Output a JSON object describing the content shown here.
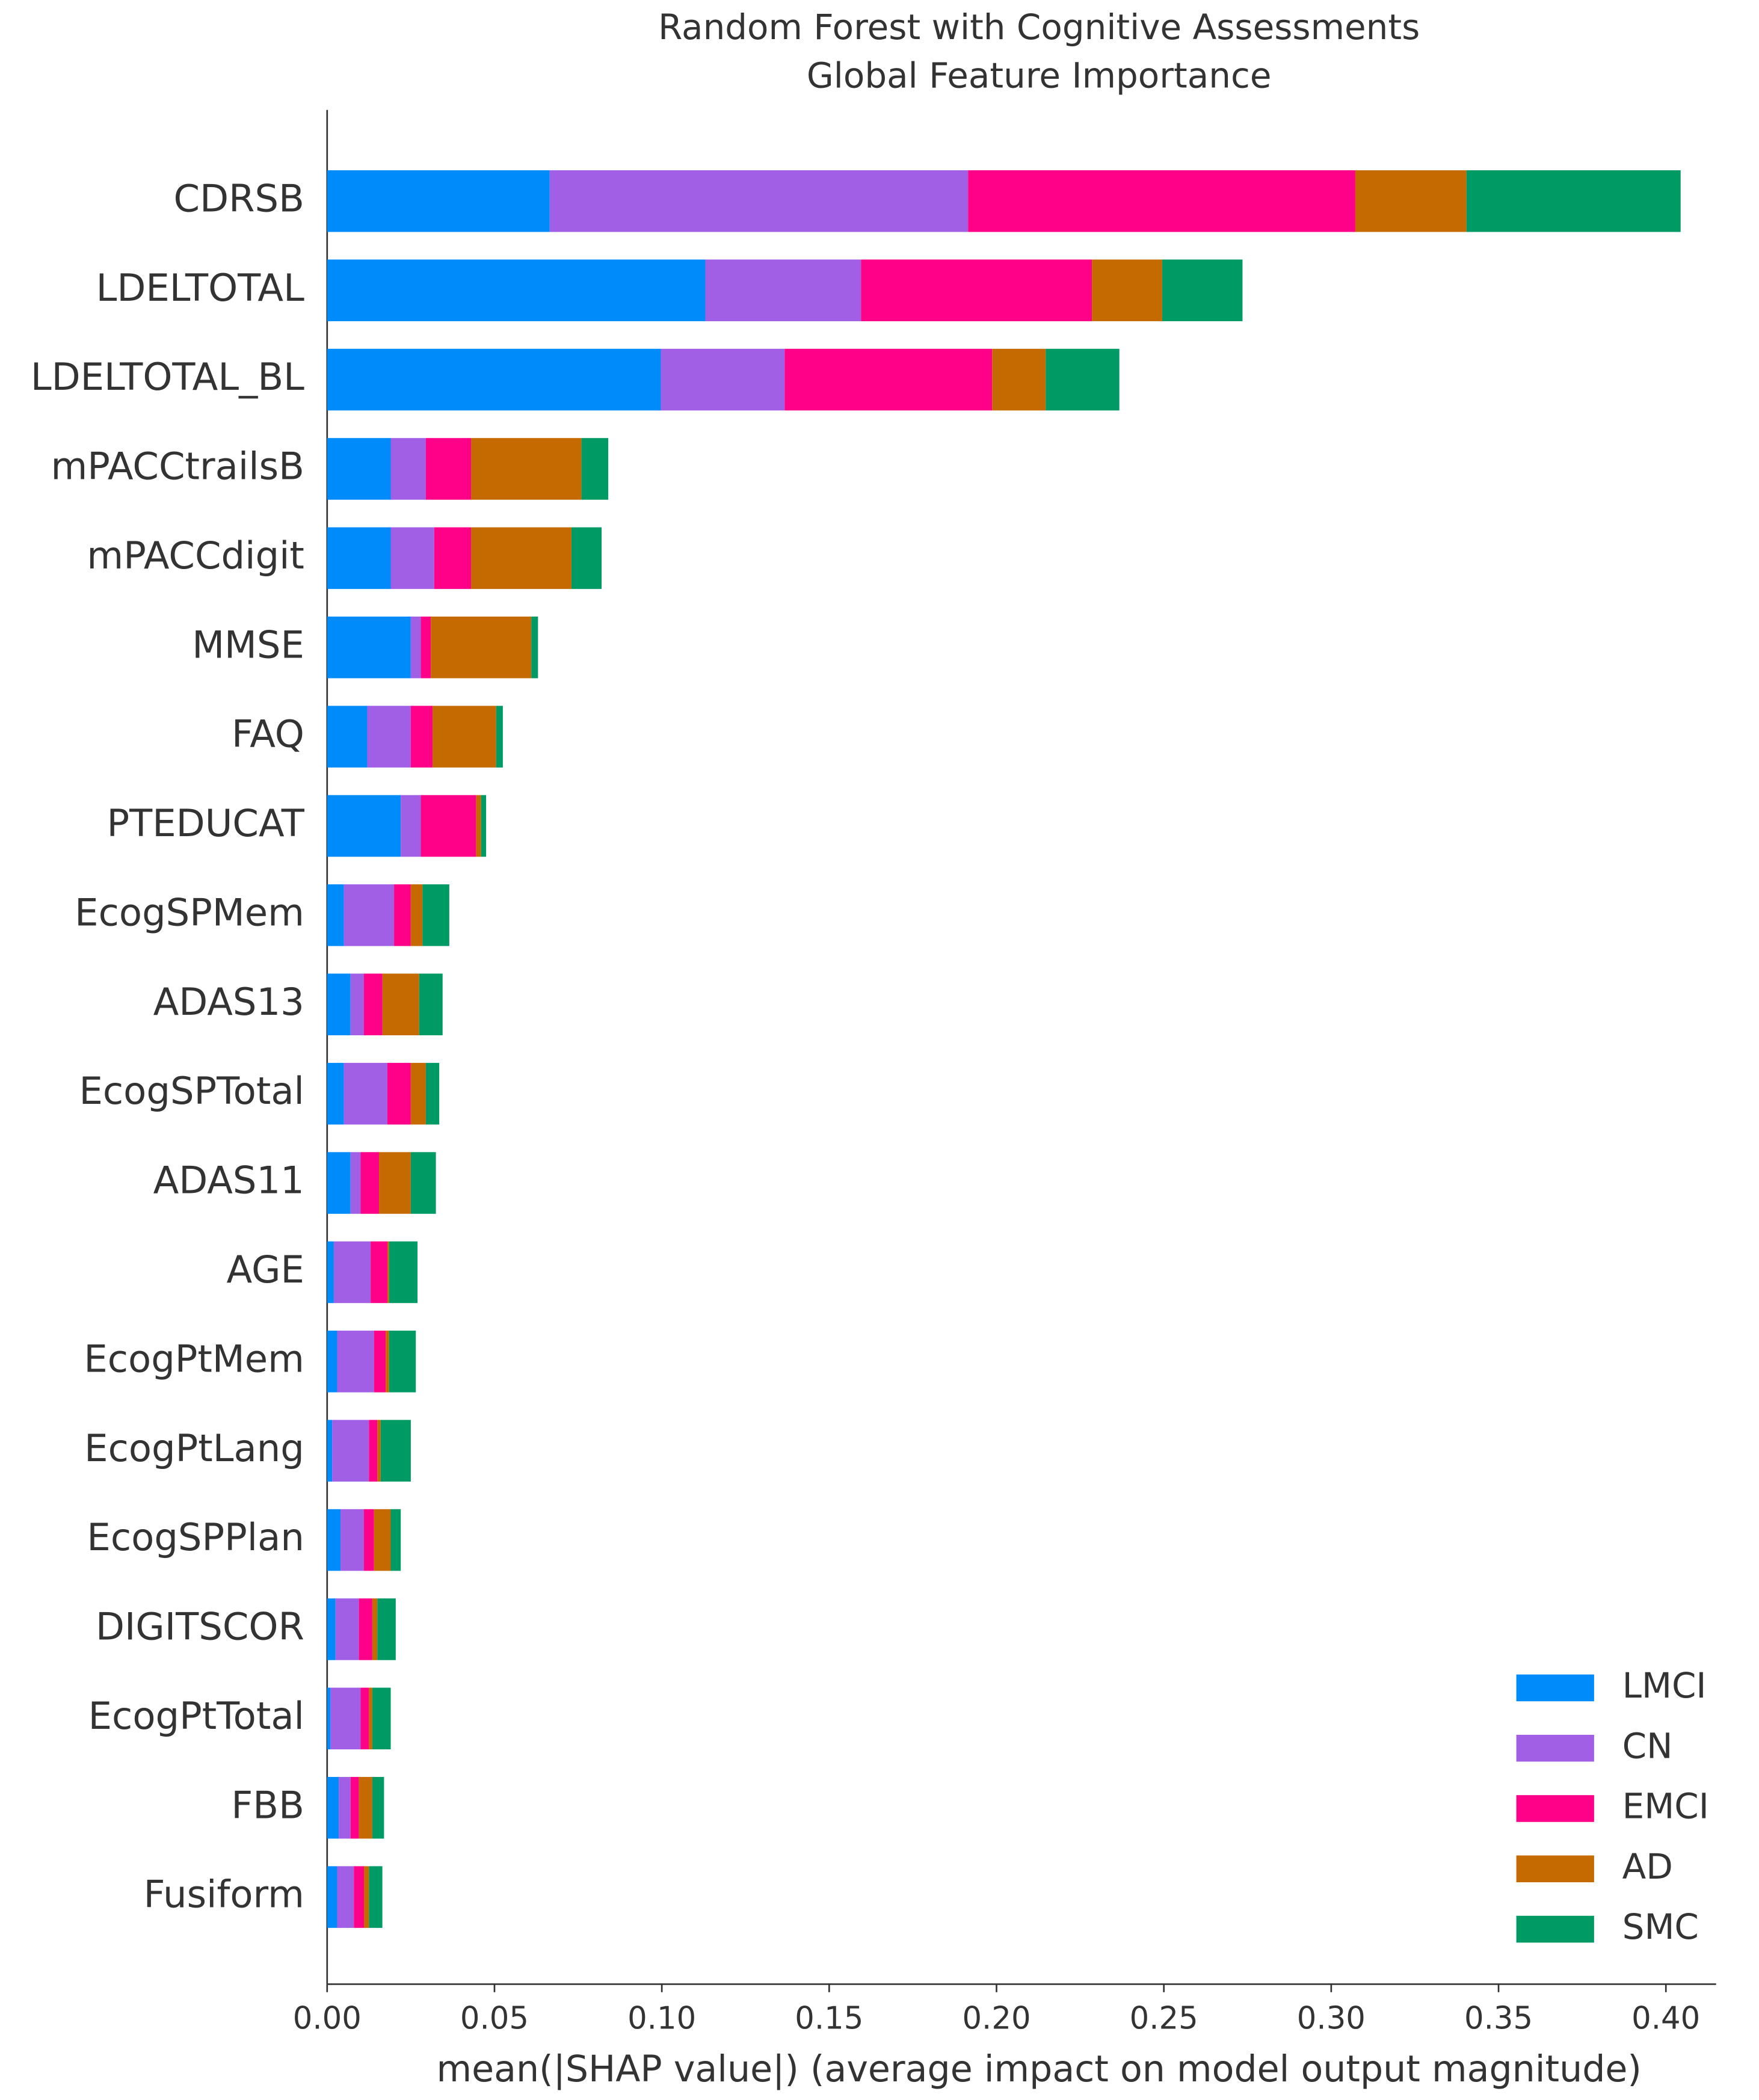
{
  "chart_data": {
    "type": "stacked-barh",
    "title": "Random Forest with Cognitive Assessments",
    "subtitle": "Global Feature Importance",
    "x_label": "mean(|SHAP value|) (average impact on model output magnitude)",
    "categories": [
      "CDRSB",
      "LDELTOTAL",
      "LDELTOTAL_BL",
      "mPACCtrailsB",
      "mPACCdigit",
      "MMSE",
      "FAQ",
      "PTEDUCAT",
      "EcogSPMem",
      "ADAS13",
      "EcogSPTotal",
      "ADAS11",
      "AGE",
      "EcogPtMem",
      "EcogPtLang",
      "EcogSPPlan",
      "DIGITSCOR",
      "EcogPtTotal",
      "FBB",
      "Fusiform"
    ],
    "series": [
      {
        "name": "LMCI",
        "color": "#008bfb",
        "values": [
          0.0665,
          0.113,
          0.0997,
          0.019,
          0.019,
          0.025,
          0.012,
          0.022,
          0.005,
          0.007,
          0.005,
          0.007,
          0.002,
          0.003,
          0.0015,
          0.004,
          0.0025,
          0.001,
          0.0035,
          0.003
        ]
      },
      {
        "name": "CN",
        "color": "#a15fe6",
        "values": [
          0.125,
          0.0465,
          0.037,
          0.0105,
          0.013,
          0.003,
          0.013,
          0.006,
          0.015,
          0.004,
          0.013,
          0.003,
          0.011,
          0.011,
          0.011,
          0.007,
          0.007,
          0.009,
          0.0035,
          0.005
        ]
      },
      {
        "name": "EMCI",
        "color": "#ff0088",
        "values": [
          0.1157,
          0.069,
          0.062,
          0.0135,
          0.011,
          0.003,
          0.0065,
          0.0165,
          0.005,
          0.0055,
          0.007,
          0.0055,
          0.005,
          0.0035,
          0.0025,
          0.003,
          0.004,
          0.0025,
          0.0025,
          0.003
        ]
      },
      {
        "name": "AD",
        "color": "#c56a00",
        "values": [
          0.0332,
          0.021,
          0.016,
          0.033,
          0.03,
          0.03,
          0.019,
          0.0015,
          0.0035,
          0.011,
          0.0045,
          0.0095,
          0.0005,
          0.001,
          0.001,
          0.005,
          0.0015,
          0.001,
          0.004,
          0.0015
        ]
      },
      {
        "name": "SMC",
        "color": "#009a64",
        "values": [
          0.064,
          0.024,
          0.022,
          0.008,
          0.009,
          0.002,
          0.002,
          0.0015,
          0.008,
          0.007,
          0.004,
          0.0075,
          0.0085,
          0.008,
          0.009,
          0.003,
          0.0055,
          0.0055,
          0.0035,
          0.004
        ]
      }
    ],
    "xlim": [
      0,
      0.415
    ],
    "xticks": [
      {
        "value": 0,
        "label": "0.00"
      },
      {
        "value": 0.05,
        "label": "0.05"
      },
      {
        "value": 0.1,
        "label": "0.10"
      },
      {
        "value": 0.15,
        "label": "0.15"
      },
      {
        "value": 0.2,
        "label": "0.20"
      },
      {
        "value": 0.25,
        "label": "0.25"
      },
      {
        "value": 0.3,
        "label": "0.30"
      },
      {
        "value": 0.35,
        "label": "0.35"
      },
      {
        "value": 0.4,
        "label": "0.40"
      }
    ],
    "legend": "lower right"
  }
}
